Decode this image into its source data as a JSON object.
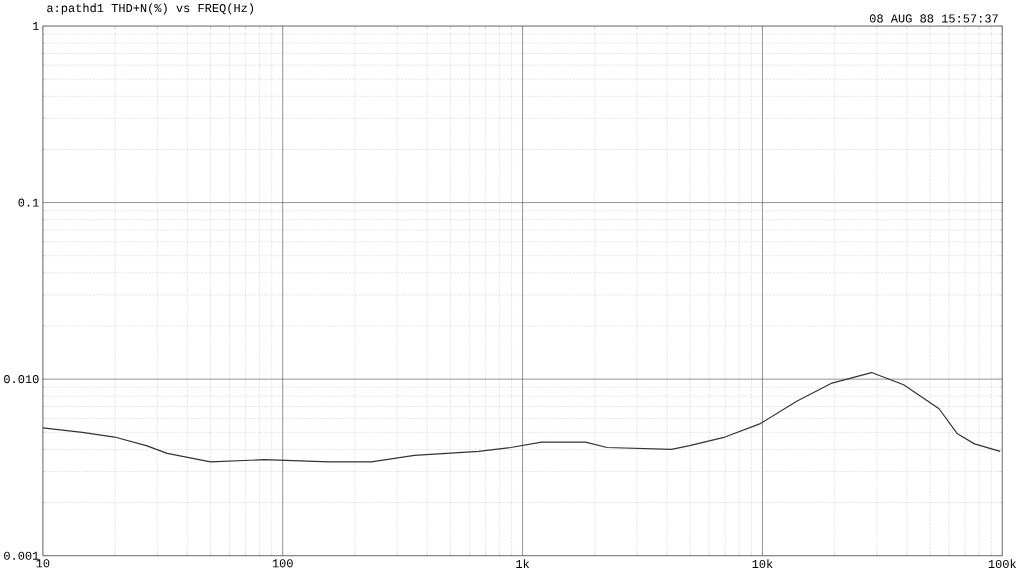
{
  "chart_data": {
    "type": "line",
    "title": "a:pathd1 THD+N(%) vs FREQ(Hz)",
    "annotations": [
      "08 AUG 88 15:57:37"
    ],
    "log": "xy",
    "grid": true,
    "xlim": [
      10,
      100000
    ],
    "xticks": [
      10,
      100,
      {
        "value": 1000,
        "label": "1k"
      },
      {
        "value": 10000,
        "label": "10k"
      },
      {
        "value": 100000,
        "label": "100k"
      }
    ],
    "ylim": [
      0.001,
      1
    ],
    "yticks": [
      {
        "value": 0.001,
        "label": "0.001"
      },
      {
        "value": 0.01,
        "label": "0.010"
      },
      0.1,
      1
    ],
    "series": [
      {
        "color": "#333333",
        "x": [
          10,
          14.6,
          19.9,
          27,
          33,
          50,
          84,
          156,
          234,
          354,
          656,
          893,
          1200,
          1830,
          2250,
          4180,
          4970,
          6980,
          9800,
          13900,
          19500,
          28500,
          38800,
          54500,
          65000,
          76600,
          98000
        ],
        "values": [
          0.0053,
          0.005,
          0.0047,
          0.0042,
          0.0038,
          0.0034,
          0.0035,
          0.0034,
          0.0034,
          0.0037,
          0.0039,
          0.0041,
          0.0044,
          0.0044,
          0.0041,
          0.004,
          0.0042,
          0.0047,
          0.0056,
          0.0075,
          0.0095,
          0.0109,
          0.0093,
          0.0068,
          0.0049,
          0.0043,
          0.0039
        ]
      }
    ]
  }
}
